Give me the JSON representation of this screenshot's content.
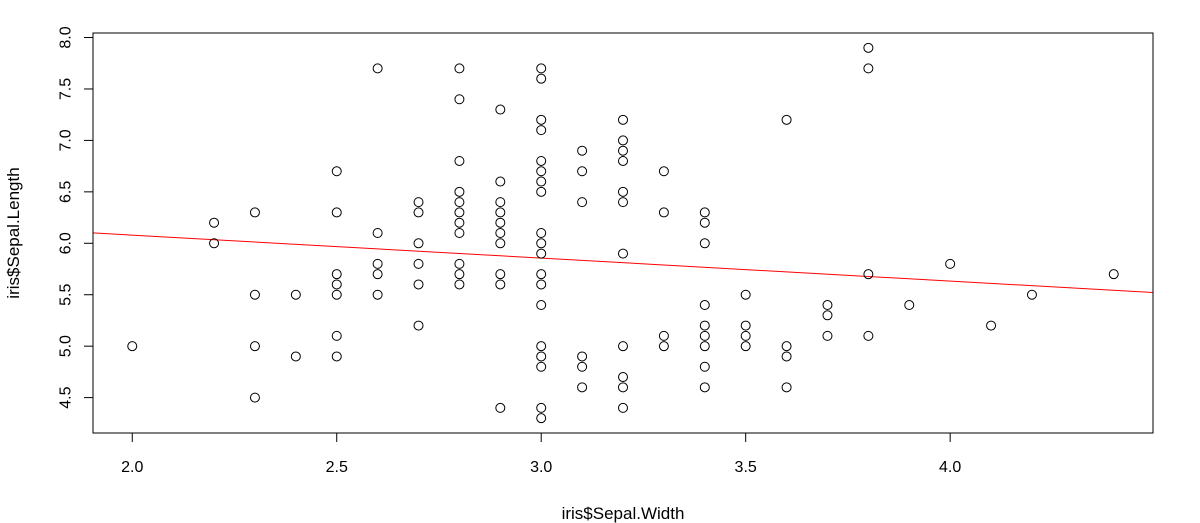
{
  "chart_data": {
    "type": "scatter",
    "title": "",
    "xlabel": "iris$Sepal.Width",
    "ylabel": "iris$Sepal.Length",
    "xlim": [
      1.904,
      4.496
    ],
    "ylim": [
      4.156,
      8.044
    ],
    "xticks": [
      "2.0",
      "2.5",
      "3.0",
      "3.5",
      "4.0"
    ],
    "yticks": [
      "4.5",
      "5.0",
      "5.5",
      "6.0",
      "6.5",
      "7.0",
      "7.5",
      "8.0"
    ],
    "grid": false,
    "marker": "open-circle",
    "point_color": "#000000",
    "regression_line": {
      "color": "#ff0000",
      "intercept": 6.5262,
      "slope": -0.2234
    },
    "series": [
      {
        "points": [
          [
            2.0,
            5.0
          ],
          [
            2.2,
            6.2
          ],
          [
            2.2,
            6.0
          ],
          [
            2.3,
            6.3
          ],
          [
            2.3,
            5.5
          ],
          [
            2.3,
            5.0
          ],
          [
            2.3,
            4.5
          ],
          [
            2.4,
            5.5
          ],
          [
            2.4,
            4.9
          ],
          [
            2.5,
            6.7
          ],
          [
            2.5,
            6.3
          ],
          [
            2.5,
            5.7
          ],
          [
            2.5,
            5.6
          ],
          [
            2.5,
            5.5
          ],
          [
            2.5,
            5.1
          ],
          [
            2.5,
            4.9
          ],
          [
            2.6,
            7.7
          ],
          [
            2.6,
            6.1
          ],
          [
            2.6,
            5.8
          ],
          [
            2.6,
            5.7
          ],
          [
            2.6,
            5.5
          ],
          [
            2.7,
            6.4
          ],
          [
            2.7,
            6.3
          ],
          [
            2.7,
            6.0
          ],
          [
            2.7,
            5.8
          ],
          [
            2.7,
            5.6
          ],
          [
            2.7,
            5.2
          ],
          [
            2.8,
            7.7
          ],
          [
            2.8,
            7.4
          ],
          [
            2.8,
            6.8
          ],
          [
            2.8,
            6.5
          ],
          [
            2.8,
            6.4
          ],
          [
            2.8,
            6.3
          ],
          [
            2.8,
            6.2
          ],
          [
            2.8,
            6.1
          ],
          [
            2.8,
            5.8
          ],
          [
            2.8,
            5.7
          ],
          [
            2.8,
            5.6
          ],
          [
            2.9,
            7.3
          ],
          [
            2.9,
            6.6
          ],
          [
            2.9,
            6.4
          ],
          [
            2.9,
            6.3
          ],
          [
            2.9,
            6.2
          ],
          [
            2.9,
            6.1
          ],
          [
            2.9,
            6.0
          ],
          [
            2.9,
            5.7
          ],
          [
            2.9,
            5.6
          ],
          [
            2.9,
            4.4
          ],
          [
            3.0,
            7.7
          ],
          [
            3.0,
            7.6
          ],
          [
            3.0,
            7.2
          ],
          [
            3.0,
            7.1
          ],
          [
            3.0,
            6.8
          ],
          [
            3.0,
            6.7
          ],
          [
            3.0,
            6.6
          ],
          [
            3.0,
            6.5
          ],
          [
            3.0,
            6.1
          ],
          [
            3.0,
            6.0
          ],
          [
            3.0,
            5.9
          ],
          [
            3.0,
            5.7
          ],
          [
            3.0,
            5.6
          ],
          [
            3.0,
            5.4
          ],
          [
            3.0,
            5.0
          ],
          [
            3.0,
            4.9
          ],
          [
            3.0,
            4.8
          ],
          [
            3.0,
            4.4
          ],
          [
            3.0,
            4.3
          ],
          [
            3.1,
            6.9
          ],
          [
            3.1,
            6.7
          ],
          [
            3.1,
            6.4
          ],
          [
            3.1,
            4.9
          ],
          [
            3.1,
            4.8
          ],
          [
            3.1,
            4.6
          ],
          [
            3.2,
            7.2
          ],
          [
            3.2,
            7.0
          ],
          [
            3.2,
            6.9
          ],
          [
            3.2,
            6.8
          ],
          [
            3.2,
            6.5
          ],
          [
            3.2,
            6.4
          ],
          [
            3.2,
            5.9
          ],
          [
            3.2,
            5.0
          ],
          [
            3.2,
            4.7
          ],
          [
            3.2,
            4.6
          ],
          [
            3.2,
            4.4
          ],
          [
            3.3,
            6.7
          ],
          [
            3.3,
            6.3
          ],
          [
            3.3,
            5.1
          ],
          [
            3.3,
            5.0
          ],
          [
            3.4,
            6.3
          ],
          [
            3.4,
            6.2
          ],
          [
            3.4,
            6.0
          ],
          [
            3.4,
            5.4
          ],
          [
            3.4,
            5.2
          ],
          [
            3.4,
            5.1
          ],
          [
            3.4,
            5.0
          ],
          [
            3.4,
            4.8
          ],
          [
            3.4,
            4.6
          ],
          [
            3.5,
            5.5
          ],
          [
            3.5,
            5.2
          ],
          [
            3.5,
            5.1
          ],
          [
            3.5,
            5.0
          ],
          [
            3.6,
            7.2
          ],
          [
            3.6,
            5.0
          ],
          [
            3.6,
            4.9
          ],
          [
            3.6,
            4.6
          ],
          [
            3.7,
            5.4
          ],
          [
            3.7,
            5.3
          ],
          [
            3.7,
            5.1
          ],
          [
            3.8,
            7.9
          ],
          [
            3.8,
            7.7
          ],
          [
            3.8,
            5.7
          ],
          [
            3.8,
            5.1
          ],
          [
            3.9,
            5.4
          ],
          [
            4.0,
            5.8
          ],
          [
            4.1,
            5.2
          ],
          [
            4.2,
            5.5
          ],
          [
            4.4,
            5.7
          ]
        ]
      }
    ]
  }
}
